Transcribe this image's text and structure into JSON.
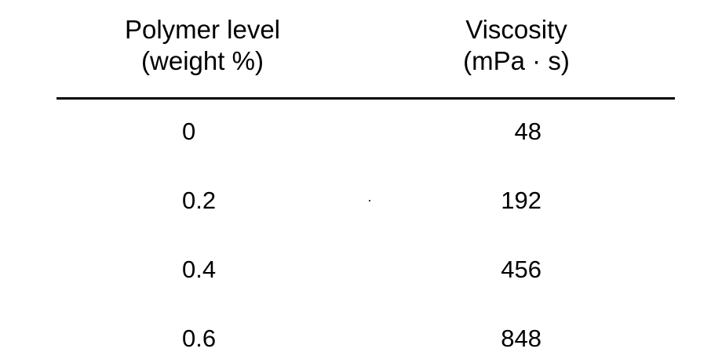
{
  "table": {
    "columns": [
      {
        "line1": "Polymer level",
        "line2": "(weight %)"
      },
      {
        "line1": "Viscosity",
        "line2": "(mPa · s)"
      }
    ],
    "rows": [
      {
        "polymer_level": "0",
        "viscosity": "48"
      },
      {
        "polymer_level": "0.2",
        "viscosity": "192"
      },
      {
        "polymer_level": "0.4",
        "viscosity": "456"
      },
      {
        "polymer_level": "0.6",
        "viscosity": "848"
      }
    ]
  }
}
